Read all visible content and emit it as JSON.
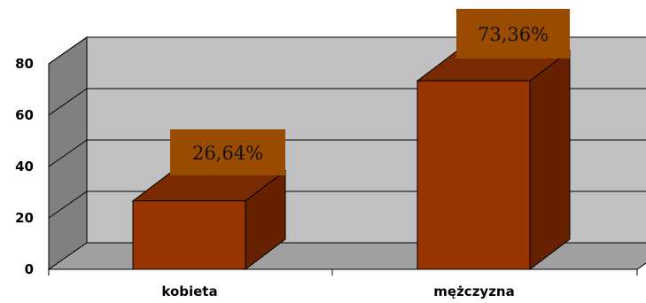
{
  "chart_data": {
    "type": "bar",
    "style": "3d-column",
    "categories": [
      "kobieta",
      "mężczyzna"
    ],
    "values": [
      26.64,
      73.36
    ],
    "data_labels": [
      "26,64%",
      "73,36%"
    ],
    "yticks": [
      "0",
      "20",
      "40",
      "60",
      "80"
    ],
    "ylim": [
      0,
      80
    ],
    "grid": true,
    "title": "",
    "xlabel": "",
    "ylabel": "",
    "colors": {
      "bar_front": "#993300",
      "bar_side": "#662200",
      "bar_top": "#7a2a00",
      "label_box": "#994c00",
      "back_wall": "#c0c0c0",
      "side_wall": "#808080",
      "floor": "#a0a0a0"
    }
  }
}
